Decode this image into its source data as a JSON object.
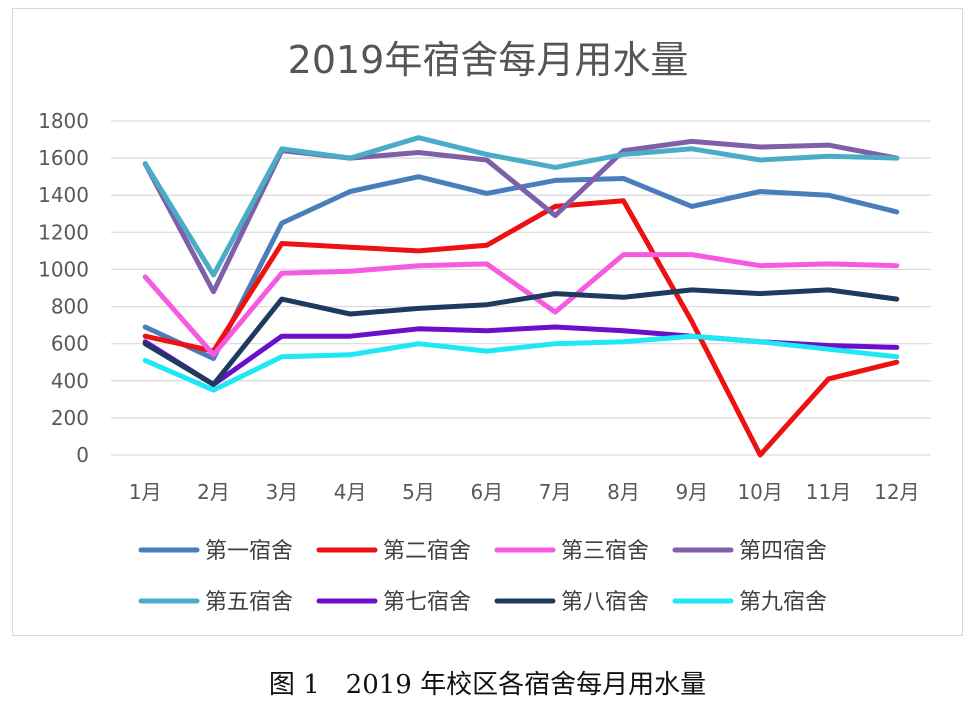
{
  "caption": "图 1　2019 年校区各宿舍每月用水量",
  "chart_data": {
    "type": "line",
    "title": "2019年宿舍每月用水量",
    "xlabel": "",
    "ylabel": "",
    "categories": [
      "1月",
      "2月",
      "3月",
      "4月",
      "5月",
      "6月",
      "7月",
      "8月",
      "9月",
      "10月",
      "11月",
      "12月"
    ],
    "ylim": [
      0,
      1800
    ],
    "yticks": [
      0,
      200,
      400,
      600,
      800,
      1000,
      1200,
      1400,
      1600,
      1800
    ],
    "grid": true,
    "legend_position": "bottom",
    "series": [
      {
        "name": "第一宿舍",
        "color": "#4a7ebb",
        "values": [
          690,
          520,
          1250,
          1420,
          1500,
          1410,
          1480,
          1490,
          1340,
          1420,
          1400,
          1310
        ]
      },
      {
        "name": "第二宿舍",
        "color": "#ee1111",
        "values": [
          640,
          560,
          1140,
          1120,
          1100,
          1130,
          1340,
          1370,
          720,
          0,
          410,
          500
        ]
      },
      {
        "name": "第三宿舍",
        "color": "#f55ae0",
        "values": [
          960,
          540,
          980,
          990,
          1020,
          1030,
          770,
          1080,
          1080,
          1020,
          1030,
          1020
        ]
      },
      {
        "name": "第四宿舍",
        "color": "#7f5fa8",
        "values": [
          1570,
          880,
          1640,
          1600,
          1630,
          1590,
          1290,
          1640,
          1690,
          1660,
          1670,
          1600
        ]
      },
      {
        "name": "第五宿舍",
        "color": "#4aacc6",
        "values": [
          1570,
          970,
          1650,
          1600,
          1710,
          1620,
          1550,
          1620,
          1650,
          1590,
          1610,
          1600
        ]
      },
      {
        "name": "第七宿舍",
        "color": "#6a0fcc",
        "values": [
          610,
          380,
          640,
          640,
          680,
          670,
          690,
          670,
          640,
          610,
          590,
          580
        ]
      },
      {
        "name": "第八宿舍",
        "color": "#1f3a5f",
        "values": [
          600,
          380,
          840,
          760,
          790,
          810,
          870,
          850,
          890,
          870,
          890,
          840
        ]
      },
      {
        "name": "第九宿舍",
        "color": "#1ee8f5",
        "values": [
          510,
          350,
          530,
          540,
          600,
          560,
          600,
          610,
          640,
          610,
          570,
          530
        ]
      }
    ]
  }
}
